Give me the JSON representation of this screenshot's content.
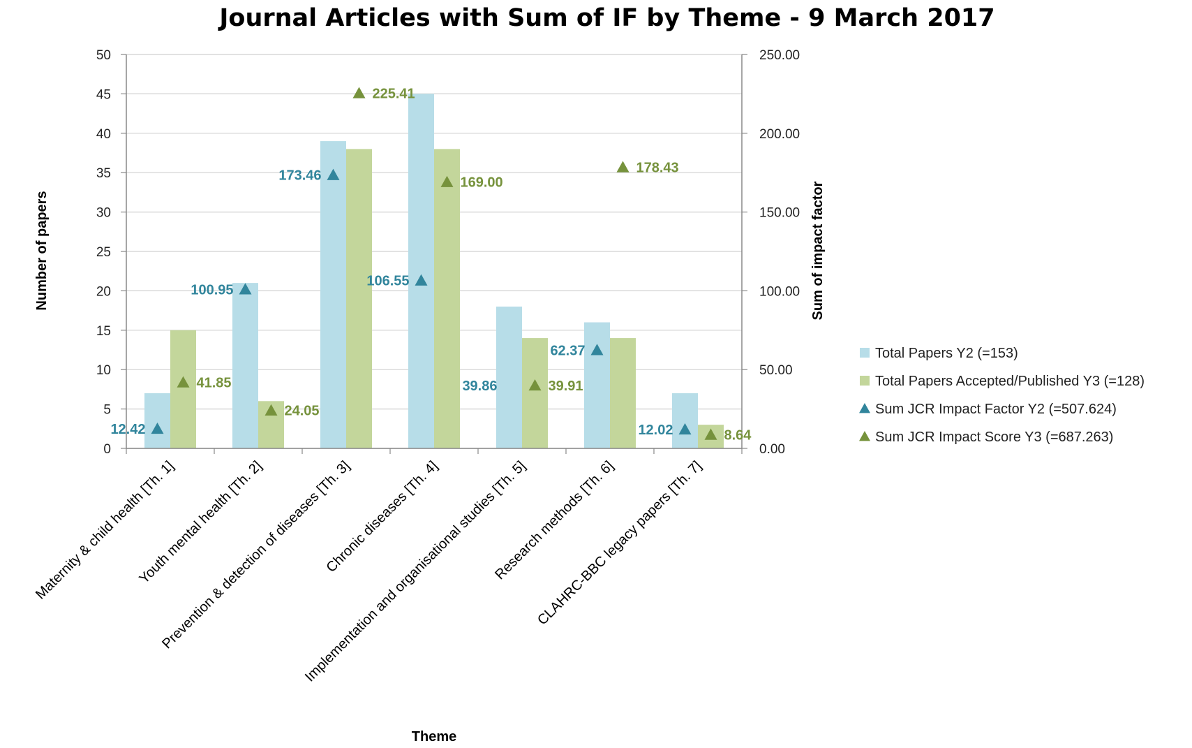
{
  "chart_data": {
    "type": "bar",
    "title": "Journal Articles with Sum of IF by Theme - 9 March 2017",
    "xlabel": "Theme",
    "ylabel": "Number of papers",
    "y2label": "Sum of impact factor",
    "ylim": [
      0,
      50
    ],
    "y2lim": [
      0,
      250
    ],
    "yticks": [
      "0",
      "5",
      "10",
      "15",
      "20",
      "25",
      "30",
      "35",
      "40",
      "45",
      "50"
    ],
    "y2ticks": [
      "0.00",
      "50.00",
      "100.00",
      "150.00",
      "200.00",
      "250.00"
    ],
    "grid": true,
    "legend_position": "right",
    "categories": [
      "Maternity & child health [Th. 1]",
      "Youth mental health [Th. 2]",
      "Prevention & detection of diseases [Th. 3]",
      "Chronic diseases [Th. 4]",
      "Implementation and organisational studies [Th. 5]",
      "Research methods [Th. 6]",
      "CLAHRC-BBC legacy papers [Th. 7]"
    ],
    "series": [
      {
        "name": "Total Papers Y2 (=153)",
        "kind": "bar",
        "axis": "left",
        "color": "#b7dde8",
        "values": [
          7,
          21,
          39,
          45,
          18,
          16,
          7
        ]
      },
      {
        "name": "Total Papers Accepted/Published Y3 (=128)",
        "kind": "bar",
        "axis": "left",
        "color": "#c3d69b",
        "values": [
          15,
          6,
          38,
          38,
          14,
          14,
          3
        ]
      },
      {
        "name": "Sum JCR Impact Factor Y2 (=507.624)",
        "kind": "marker",
        "axis": "right",
        "color": "#31859c",
        "values": [
          12.42,
          100.95,
          173.46,
          106.55,
          null,
          62.37,
          12.02
        ],
        "labels": [
          "12.42",
          "100.95",
          "173.46",
          "106.55",
          "39.86",
          "62.37",
          "12.02"
        ]
      },
      {
        "name": "Sum JCR Impact Score Y3 (=687.263)",
        "kind": "marker",
        "axis": "right",
        "color": "#76923c",
        "values": [
          41.85,
          24.05,
          225.41,
          169.0,
          39.91,
          178.43,
          8.64
        ],
        "labels": [
          "41.85",
          "24.05",
          "225.41",
          "169.00",
          "39.91",
          "178.43",
          "8.64"
        ]
      }
    ]
  }
}
